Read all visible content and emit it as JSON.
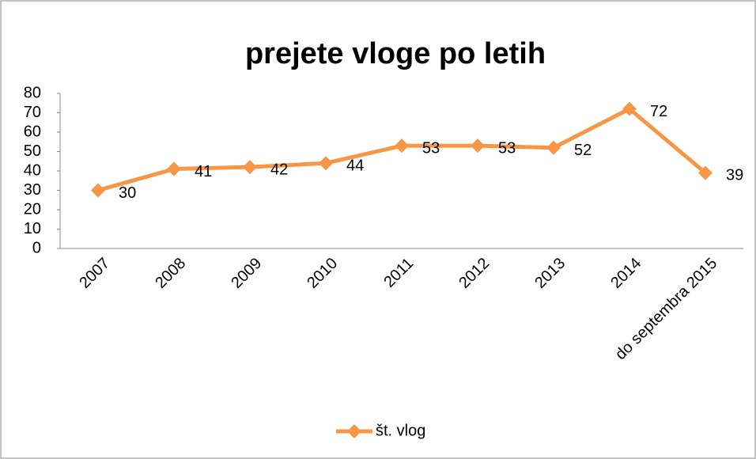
{
  "chart_data": {
    "type": "line",
    "title": "prejete vloge po letih",
    "categories": [
      "2007",
      "2008",
      "2009",
      "2010",
      "2011",
      "2012",
      "2013",
      "2014",
      "do septembra 2015"
    ],
    "series": [
      {
        "name": "št. vlog",
        "color": "#f79646",
        "values": [
          30,
          41,
          42,
          44,
          53,
          53,
          52,
          72,
          39
        ]
      }
    ],
    "ylim": [
      0,
      80
    ],
    "yticks": [
      0,
      10,
      20,
      30,
      40,
      50,
      60,
      70,
      80
    ],
    "grid": false,
    "legend": "bottom"
  }
}
